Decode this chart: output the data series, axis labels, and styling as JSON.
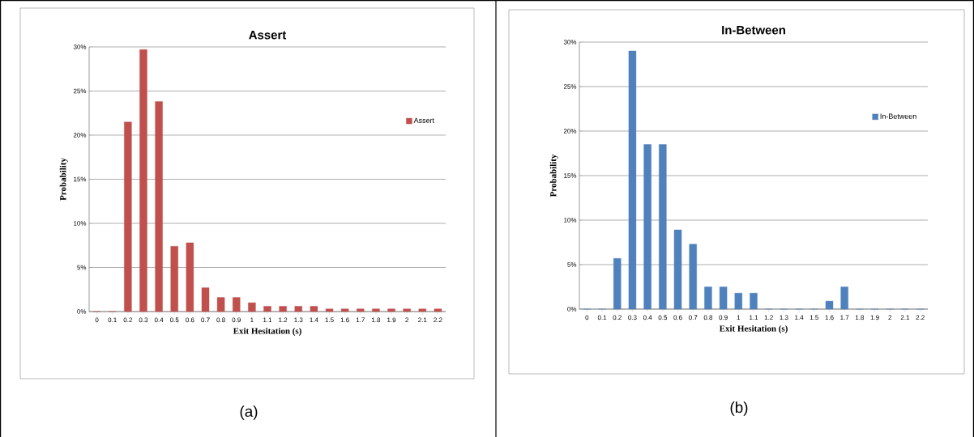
{
  "chart_data": [
    {
      "type": "bar",
      "title": "Assert",
      "xlabel": "Exit Hesitation (s)",
      "ylabel": "Probability",
      "categories": [
        "0",
        "0.1",
        "0.2",
        "0.3",
        "0.4",
        "0.5",
        "0.6",
        "0.7",
        "0.8",
        "0.9",
        "1",
        "1.1",
        "1.2",
        "1.3",
        "1.4",
        "1.5",
        "1.6",
        "1.7",
        "1.8",
        "1.9",
        "2",
        "2.1",
        "2.2"
      ],
      "series": [
        {
          "name": "Assert",
          "color": "#c0504d",
          "values": [
            0,
            0,
            21.5,
            29.7,
            23.8,
            7.4,
            7.8,
            2.7,
            1.6,
            1.6,
            1.0,
            0.6,
            0.6,
            0.6,
            0.6,
            0.3,
            0.3,
            0.3,
            0.3,
            0.3,
            0.3,
            0.3,
            0.3
          ]
        }
      ],
      "ylim": [
        0,
        30
      ],
      "yticks": [
        {
          "value": 0,
          "label": "0%"
        },
        {
          "value": 5,
          "label": "5%"
        },
        {
          "value": 10,
          "label": "10%"
        },
        {
          "value": 15,
          "label": "15%"
        },
        {
          "value": 20,
          "label": "20%"
        },
        {
          "value": 25,
          "label": "25%"
        },
        {
          "value": 30,
          "label": "30%"
        }
      ],
      "grid": "y",
      "legend": "right",
      "annotations": [
        "(a)"
      ]
    },
    {
      "type": "bar",
      "title": "In-Between",
      "xlabel": "Exit Hesitation (s)",
      "ylabel": "Probability",
      "categories": [
        "0",
        "0.1",
        "0.2",
        "0.3",
        "0.4",
        "0.5",
        "0.6",
        "0.7",
        "0.8",
        "0.9",
        "1",
        "1.1",
        "1.2",
        "1.3",
        "1.4",
        "1.5",
        "1.6",
        "1.7",
        "1.8",
        "1.9",
        "2",
        "2.1",
        "2.2"
      ],
      "series": [
        {
          "name": "In-Between",
          "color": "#4f81bd",
          "values": [
            0,
            0,
            5.7,
            29.0,
            18.5,
            18.5,
            8.9,
            7.3,
            2.5,
            2.5,
            1.8,
            1.8,
            0,
            0,
            0,
            0,
            0.9,
            2.5,
            0,
            0,
            0,
            0,
            0
          ]
        }
      ],
      "ylim": [
        0,
        30
      ],
      "yticks": [
        {
          "value": 0,
          "label": "0%"
        },
        {
          "value": 5,
          "label": "5%"
        },
        {
          "value": 10,
          "label": "10%"
        },
        {
          "value": 15,
          "label": "15%"
        },
        {
          "value": 20,
          "label": "20%"
        },
        {
          "value": 25,
          "label": "25%"
        },
        {
          "value": 30,
          "label": "30%"
        }
      ],
      "grid": "y",
      "legend": "right",
      "annotations": [
        "(b)"
      ]
    }
  ]
}
